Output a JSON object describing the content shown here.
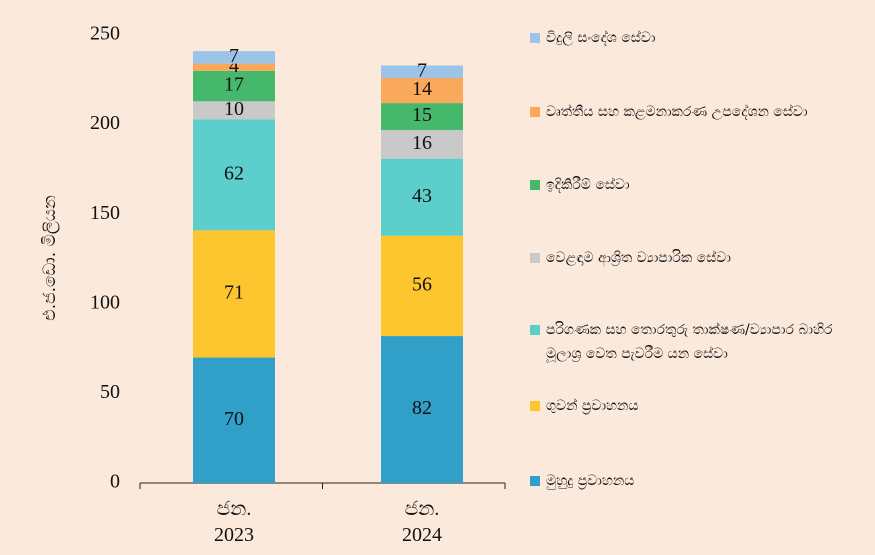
{
  "chart_data": {
    "type": "stacked_bar",
    "y_label": "එ.ජ.ඩො. මිලියන",
    "categories": [
      "ජන.\n2023",
      "ජන.\n2024"
    ],
    "series": [
      {
        "name": "මුහුදු ප්‍රවාහනය",
        "color": "#31a0c9",
        "values": [
          70,
          82
        ]
      },
      {
        "name": "ගුවන් ප්‍රවාහනය",
        "color": "#fdc52e",
        "values": [
          71,
          56
        ]
      },
      {
        "name": "පරිගණක සහ තොරතුරු තාක්ෂණ/ව්‍යාපාර බාහිර මූලාශ්‍ර වෙත පැවරීම යන සේවා",
        "color": "#5ccfcd",
        "values": [
          62,
          43
        ]
      },
      {
        "name": "වෙළඳාම ආශ්‍රිත ව්‍යාපාරික සේවා",
        "color": "#c9c9c9",
        "values": [
          10,
          16
        ]
      },
      {
        "name": "ඉදිකිරීම් සේවා",
        "color": "#46b86c",
        "values": [
          17,
          15
        ]
      },
      {
        "name": "වෘත්තීය සහ කළමනාකරණ උපදේශන සේවා",
        "color": "#f9a85c",
        "values": [
          4,
          14
        ]
      },
      {
        "name": "විදුලි සංදේශ සේවා",
        "color": "#9cc3e8",
        "values": [
          7,
          7
        ]
      }
    ],
    "ylim": [
      0,
      250
    ],
    "yticks": [
      0,
      50,
      100,
      150,
      200,
      250
    ]
  }
}
